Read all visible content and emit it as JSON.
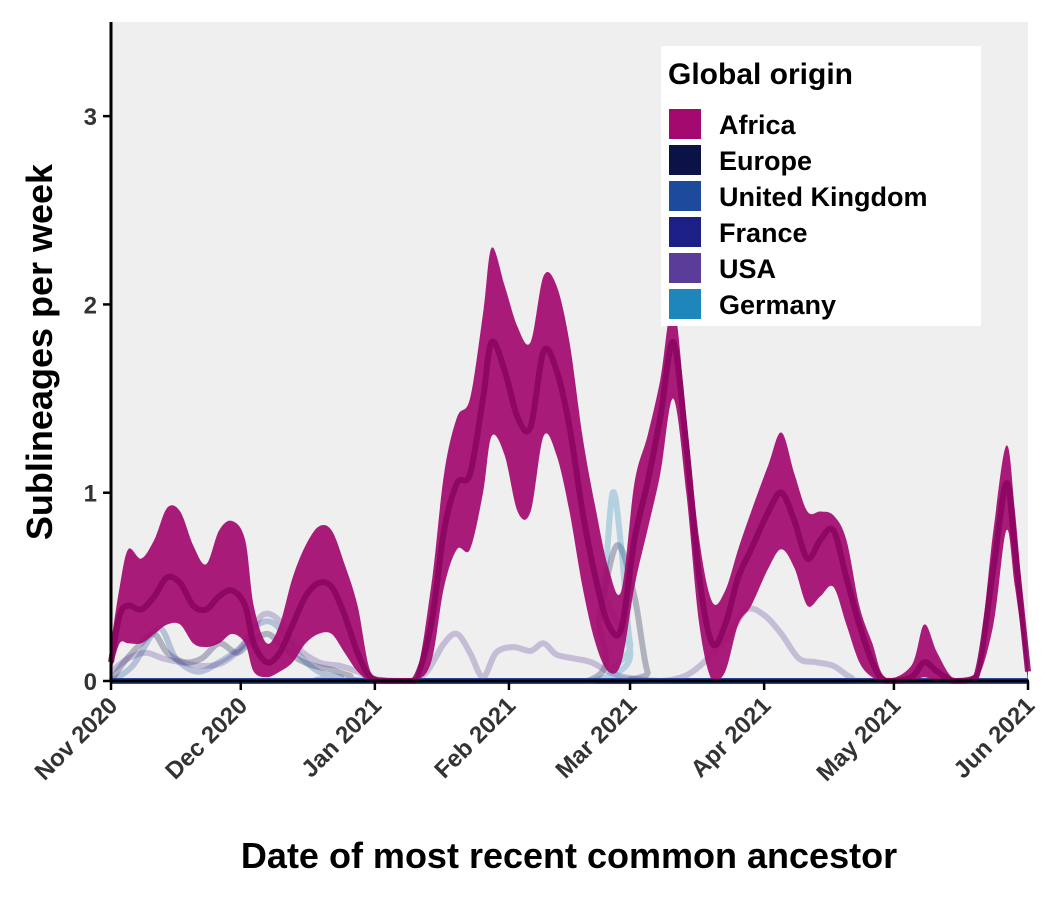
{
  "chart_data": {
    "type": "area",
    "title": "",
    "xlabel": "Date of most recent common ancestor",
    "ylabel": "Sublineages per week",
    "ylim": [
      0,
      3.5
    ],
    "yticks": [
      0,
      1,
      2,
      3
    ],
    "xlim": [
      "2020-11-01",
      "2021-06-01"
    ],
    "xticks": [
      {
        "date": "2020-11-01",
        "label": "Nov 2020"
      },
      {
        "date": "2020-12-01",
        "label": "Dec 2020"
      },
      {
        "date": "2021-01-01",
        "label": "Jan 2021"
      },
      {
        "date": "2021-02-01",
        "label": "Feb 2021"
      },
      {
        "date": "2021-03-01",
        "label": "Mar 2021"
      },
      {
        "date": "2021-04-01",
        "label": "Apr 2021"
      },
      {
        "date": "2021-05-01",
        "label": "May 2021"
      },
      {
        "date": "2021-06-01",
        "label": "Jun 2021"
      }
    ],
    "grid": false,
    "legend": {
      "title": "Global origin",
      "position": "top-right",
      "entries": [
        {
          "name": "Africa",
          "color": "#a3096e"
        },
        {
          "name": "Europe",
          "color": "#0b1245"
        },
        {
          "name": "United Kingdom",
          "color": "#1d4a9c"
        },
        {
          "name": "France",
          "color": "#1c1f86"
        },
        {
          "name": "USA",
          "color": "#5a3d98"
        },
        {
          "name": "Germany",
          "color": "#1e86bb"
        }
      ]
    },
    "series": [
      {
        "name": "Africa",
        "color": "#a3096e",
        "points": [
          [
            "2020-11-01",
            0.05,
            0.1,
            0.2
          ],
          [
            "2020-11-03",
            0.2,
            0.35,
            0.5
          ],
          [
            "2020-11-05",
            0.2,
            0.4,
            0.7
          ],
          [
            "2020-11-08",
            0.2,
            0.38,
            0.65
          ],
          [
            "2020-11-11",
            0.25,
            0.45,
            0.75
          ],
          [
            "2020-11-14",
            0.3,
            0.55,
            0.92
          ],
          [
            "2020-11-17",
            0.3,
            0.52,
            0.9
          ],
          [
            "2020-11-20",
            0.2,
            0.4,
            0.72
          ],
          [
            "2020-11-23",
            0.18,
            0.38,
            0.62
          ],
          [
            "2020-11-26",
            0.2,
            0.45,
            0.8
          ],
          [
            "2020-11-29",
            0.25,
            0.48,
            0.85
          ],
          [
            "2020-12-02",
            0.2,
            0.4,
            0.75
          ],
          [
            "2020-12-04",
            0.05,
            0.2,
            0.4
          ],
          [
            "2020-12-07",
            0.02,
            0.1,
            0.2
          ],
          [
            "2020-12-10",
            0.05,
            0.15,
            0.3
          ],
          [
            "2020-12-13",
            0.1,
            0.3,
            0.55
          ],
          [
            "2020-12-16",
            0.2,
            0.45,
            0.72
          ],
          [
            "2020-12-19",
            0.25,
            0.52,
            0.82
          ],
          [
            "2020-12-22",
            0.25,
            0.5,
            0.8
          ],
          [
            "2020-12-25",
            0.15,
            0.35,
            0.62
          ],
          [
            "2020-12-28",
            0.05,
            0.15,
            0.4
          ],
          [
            "2020-12-31",
            0.0,
            0.02,
            0.05
          ],
          [
            "2021-01-04",
            0.0,
            0.0,
            0.0
          ],
          [
            "2021-01-10",
            0.0,
            0.0,
            0.0
          ],
          [
            "2021-01-14",
            0.1,
            0.3,
            0.5
          ],
          [
            "2021-01-17",
            0.5,
            0.8,
            1.1
          ],
          [
            "2021-01-20",
            0.7,
            1.05,
            1.4
          ],
          [
            "2021-01-23",
            0.7,
            1.1,
            1.5
          ],
          [
            "2021-01-26",
            1.0,
            1.5,
            1.95
          ],
          [
            "2021-01-28",
            1.3,
            1.8,
            2.3
          ],
          [
            "2021-01-31",
            1.2,
            1.65,
            2.1
          ],
          [
            "2021-02-03",
            0.9,
            1.4,
            1.88
          ],
          [
            "2021-02-06",
            0.9,
            1.35,
            1.8
          ],
          [
            "2021-02-09",
            1.3,
            1.75,
            2.15
          ],
          [
            "2021-02-12",
            1.2,
            1.65,
            2.1
          ],
          [
            "2021-02-15",
            0.9,
            1.35,
            1.8
          ],
          [
            "2021-02-18",
            0.5,
            0.9,
            1.3
          ],
          [
            "2021-02-21",
            0.2,
            0.55,
            0.92
          ],
          [
            "2021-02-24",
            0.05,
            0.3,
            0.6
          ],
          [
            "2021-02-27",
            0.1,
            0.28,
            0.48
          ],
          [
            "2021-03-02",
            0.5,
            0.75,
            1.05
          ],
          [
            "2021-03-05",
            0.8,
            1.05,
            1.3
          ],
          [
            "2021-03-08",
            1.1,
            1.4,
            1.6
          ],
          [
            "2021-03-11",
            1.5,
            1.8,
            2.0
          ],
          [
            "2021-03-14",
            1.0,
            1.25,
            1.4
          ],
          [
            "2021-03-17",
            0.3,
            0.55,
            0.75
          ],
          [
            "2021-03-20",
            0.0,
            0.2,
            0.42
          ],
          [
            "2021-03-23",
            0.05,
            0.3,
            0.48
          ],
          [
            "2021-03-26",
            0.3,
            0.55,
            0.7
          ],
          [
            "2021-03-29",
            0.4,
            0.7,
            0.9
          ],
          [
            "2021-04-02",
            0.6,
            0.9,
            1.15
          ],
          [
            "2021-04-05",
            0.7,
            1.0,
            1.32
          ],
          [
            "2021-04-08",
            0.6,
            0.85,
            1.1
          ],
          [
            "2021-04-11",
            0.4,
            0.65,
            0.9
          ],
          [
            "2021-04-14",
            0.45,
            0.75,
            0.9
          ],
          [
            "2021-04-17",
            0.5,
            0.8,
            0.88
          ],
          [
            "2021-04-20",
            0.3,
            0.55,
            0.75
          ],
          [
            "2021-04-23",
            0.1,
            0.3,
            0.4
          ],
          [
            "2021-04-26",
            0.02,
            0.1,
            0.2
          ],
          [
            "2021-04-29",
            0.0,
            0.0,
            0.02
          ],
          [
            "2021-05-05",
            0.0,
            0.02,
            0.08
          ],
          [
            "2021-05-08",
            0.02,
            0.1,
            0.3
          ],
          [
            "2021-05-11",
            0.0,
            0.05,
            0.15
          ],
          [
            "2021-05-15",
            0.0,
            0.0,
            0.01
          ],
          [
            "2021-05-20",
            0.0,
            0.02,
            0.05
          ],
          [
            "2021-05-24",
            0.3,
            0.6,
            0.8
          ],
          [
            "2021-05-27",
            0.8,
            1.05,
            1.25
          ],
          [
            "2021-05-29",
            0.5,
            0.7,
            0.9
          ],
          [
            "2021-06-01",
            0.0,
            0.05,
            0.1
          ]
        ]
      },
      {
        "name": "Europe",
        "color": "#0b1245",
        "points": [
          [
            "2020-11-01",
            0.0
          ],
          [
            "2020-11-04",
            0.1
          ],
          [
            "2020-11-08",
            0.2
          ],
          [
            "2020-11-11",
            0.25
          ],
          [
            "2020-11-14",
            0.15
          ],
          [
            "2020-11-18",
            0.1
          ],
          [
            "2020-11-22",
            0.12
          ],
          [
            "2020-11-26",
            0.2
          ],
          [
            "2020-11-30",
            0.15
          ],
          [
            "2020-12-03",
            0.2
          ],
          [
            "2020-12-07",
            0.25
          ],
          [
            "2020-12-10",
            0.2
          ],
          [
            "2020-12-14",
            0.12
          ],
          [
            "2020-12-18",
            0.08
          ],
          [
            "2020-12-22",
            0.06
          ],
          [
            "2020-12-26",
            0.03
          ],
          [
            "2021-01-01",
            0.0
          ],
          [
            "2021-02-19",
            0.0
          ],
          [
            "2021-02-22",
            0.35
          ],
          [
            "2021-02-26",
            0.72
          ],
          [
            "2021-03-02",
            0.45
          ],
          [
            "2021-03-05",
            0.05
          ],
          [
            "2021-03-08",
            0.0
          ],
          [
            "2021-06-01",
            0.0
          ]
        ]
      },
      {
        "name": "United Kingdom",
        "color": "#1d4a9c",
        "points": [
          [
            "2020-11-01",
            0.0
          ],
          [
            "2020-11-06",
            0.08
          ],
          [
            "2020-11-12",
            0.28
          ],
          [
            "2020-11-16",
            0.12
          ],
          [
            "2020-11-21",
            0.05
          ],
          [
            "2020-11-26",
            0.1
          ],
          [
            "2020-12-01",
            0.18
          ],
          [
            "2020-12-05",
            0.3
          ],
          [
            "2020-12-09",
            0.3
          ],
          [
            "2020-12-14",
            0.15
          ],
          [
            "2020-12-19",
            0.05
          ],
          [
            "2020-12-24",
            0.02
          ],
          [
            "2021-01-01",
            0.0
          ],
          [
            "2021-06-01",
            0.0
          ]
        ]
      },
      {
        "name": "France",
        "color": "#1c1f86",
        "points": [
          [
            "2020-11-01",
            0.0
          ],
          [
            "2021-06-01",
            0.0
          ]
        ]
      },
      {
        "name": "USA",
        "color": "#5a3d98",
        "points": [
          [
            "2020-11-01",
            0.05
          ],
          [
            "2020-11-05",
            0.12
          ],
          [
            "2020-11-09",
            0.15
          ],
          [
            "2020-11-13",
            0.12
          ],
          [
            "2020-11-17",
            0.1
          ],
          [
            "2020-11-22",
            0.08
          ],
          [
            "2020-11-27",
            0.1
          ],
          [
            "2020-12-02",
            0.2
          ],
          [
            "2020-12-06",
            0.35
          ],
          [
            "2020-12-10",
            0.32
          ],
          [
            "2020-12-14",
            0.18
          ],
          [
            "2020-12-19",
            0.1
          ],
          [
            "2020-12-24",
            0.08
          ],
          [
            "2020-12-28",
            0.05
          ],
          [
            "2021-01-01",
            0.01
          ],
          [
            "2021-01-09",
            0.0
          ],
          [
            "2021-01-13",
            0.05
          ],
          [
            "2021-01-17",
            0.2
          ],
          [
            "2021-01-20",
            0.25
          ],
          [
            "2021-01-23",
            0.15
          ],
          [
            "2021-01-26",
            0.02
          ],
          [
            "2021-01-29",
            0.15
          ],
          [
            "2021-02-02",
            0.18
          ],
          [
            "2021-02-06",
            0.16
          ],
          [
            "2021-02-09",
            0.2
          ],
          [
            "2021-02-12",
            0.14
          ],
          [
            "2021-02-16",
            0.12
          ],
          [
            "2021-02-20",
            0.1
          ],
          [
            "2021-02-24",
            0.05
          ],
          [
            "2021-02-28",
            0.02
          ],
          [
            "2021-03-08",
            0.0
          ],
          [
            "2021-03-14",
            0.03
          ],
          [
            "2021-03-19",
            0.12
          ],
          [
            "2021-03-24",
            0.25
          ],
          [
            "2021-03-28",
            0.38
          ],
          [
            "2021-04-01",
            0.35
          ],
          [
            "2021-04-05",
            0.25
          ],
          [
            "2021-04-09",
            0.12
          ],
          [
            "2021-04-13",
            0.1
          ],
          [
            "2021-04-17",
            0.08
          ],
          [
            "2021-04-21",
            0.02
          ],
          [
            "2021-04-25",
            0.0
          ],
          [
            "2021-06-01",
            0.0
          ]
        ]
      },
      {
        "name": "Germany",
        "color": "#1e86bb",
        "points": [
          [
            "2020-11-01",
            0.0
          ],
          [
            "2021-02-20",
            0.0
          ],
          [
            "2021-02-23",
            0.5
          ],
          [
            "2021-02-25",
            1.0
          ],
          [
            "2021-02-27",
            0.7
          ],
          [
            "2021-03-01",
            0.2
          ],
          [
            "2021-03-04",
            0.0
          ],
          [
            "2021-06-01",
            0.0
          ]
        ]
      }
    ]
  }
}
